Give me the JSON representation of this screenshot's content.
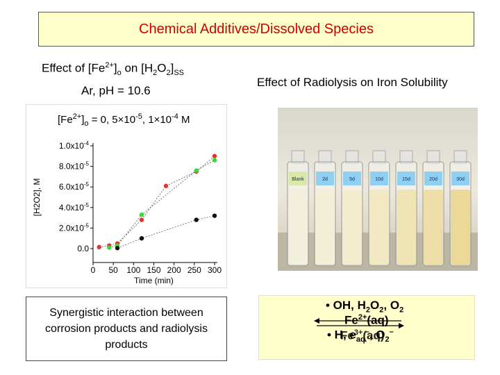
{
  "header": {
    "title": "Chemical Additives/Dissolved Species"
  },
  "left": {
    "subtitle_line1_parts": [
      "Effect of [Fe",
      "2+",
      "]",
      "o",
      " on [H",
      "2",
      "O",
      "2",
      "]",
      "SS"
    ],
    "subtitle_line2": "Ar, pH = 10.6",
    "legend_parts": [
      "[Fe",
      "2+",
      "]",
      "o",
      " = 0, 5",
      "×",
      "10",
      "-5",
      ", 1",
      "×",
      "10",
      "-4",
      " M"
    ]
  },
  "right": {
    "title": "Effect of Radiolysis on Iron Solubility",
    "vial_labels": [
      "Blank",
      "2d",
      "5d",
      "10d",
      "15d",
      "20d",
      "30d"
    ]
  },
  "note": {
    "text": "Synergistic interaction between corrosion products and radiolysis products"
  },
  "reaction": {
    "line1_parts": [
      "• OH, H",
      "2",
      "O",
      "2",
      ", O",
      "2"
    ],
    "line2_parts": [
      "Fe",
      "2+",
      "(aq)"
    ],
    "line3_parts": [
      "• H, e",
      "aq",
      "–",
      ", O",
      "2",
      "–"
    ],
    "line3_overlap_parts": [
      "Fe",
      "3+",
      "(aq)"
    ],
    "arrow_color": "#000000"
  },
  "chart_data": {
    "type": "scatter",
    "xlabel": "Time (min)",
    "ylabel": "[H2O2], M",
    "xlim": [
      0,
      300
    ],
    "ylim": [
      0,
      0.0001
    ],
    "x_ticks": [
      0,
      50,
      100,
      150,
      200,
      250,
      300
    ],
    "y_ticks": [
      0.0,
      2e-05,
      4e-05,
      6e-05,
      8e-05,
      0.0001
    ],
    "y_tick_labels": [
      "0.0",
      "2.0x10",
      "4.0x10",
      "6.0x10",
      "8.0x10",
      "1.0x10"
    ],
    "y_tick_exponents": [
      "",
      "-5",
      "-5",
      "-5",
      "-5",
      "-4"
    ],
    "series": [
      {
        "color": "#e8322e",
        "points": [
          [
            15,
            1.5e-06
          ],
          [
            40,
            3e-06
          ],
          [
            60,
            5e-06
          ],
          [
            120,
            2.8e-05
          ],
          [
            180,
            6.1e-05
          ],
          [
            255,
            7.5e-05
          ],
          [
            300,
            9e-05
          ]
        ]
      },
      {
        "color": "#33dd33",
        "points": [
          [
            40,
            1e-06
          ],
          [
            60,
            3e-06
          ],
          [
            120,
            3.3e-05
          ],
          [
            255,
            7.6e-05
          ],
          [
            300,
            8.6e-05
          ]
        ]
      },
      {
        "color": "#111111",
        "points": [
          [
            60,
            5e-07
          ],
          [
            120,
            1e-05
          ],
          [
            255,
            2.8e-05
          ],
          [
            300,
            3.2e-05
          ]
        ]
      }
    ]
  }
}
